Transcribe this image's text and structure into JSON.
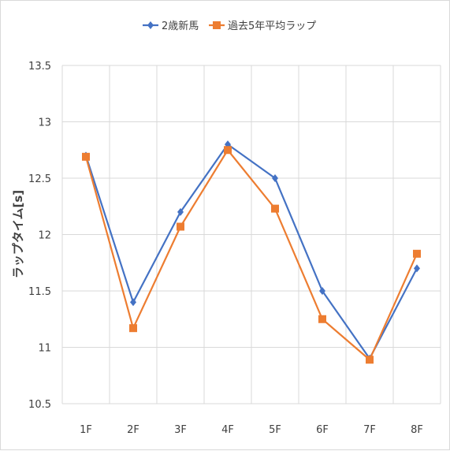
{
  "chart_data": {
    "type": "line",
    "categories": [
      "1F",
      "2F",
      "3F",
      "4F",
      "5F",
      "6F",
      "7F",
      "8F"
    ],
    "series": [
      {
        "name": "2歳新馬",
        "values": [
          12.7,
          11.4,
          12.2,
          12.8,
          12.5,
          11.5,
          10.9,
          11.7
        ],
        "color": "#4472c4",
        "marker": "diamond"
      },
      {
        "name": "過去5年平均ラップ",
        "values": [
          12.69,
          11.17,
          12.07,
          12.75,
          12.23,
          11.25,
          10.89,
          11.83
        ],
        "color": "#ed7d31",
        "marker": "square"
      }
    ],
    "title": "",
    "xlabel": "",
    "ylabel": "ラップタイム[s]",
    "ylim": [
      10.5,
      13.5
    ],
    "yticks": [
      "10.5",
      "11",
      "11.5",
      "12",
      "12.5",
      "13",
      "13.5"
    ],
    "grid": "vertical and horizontal",
    "legend_position": "top"
  }
}
